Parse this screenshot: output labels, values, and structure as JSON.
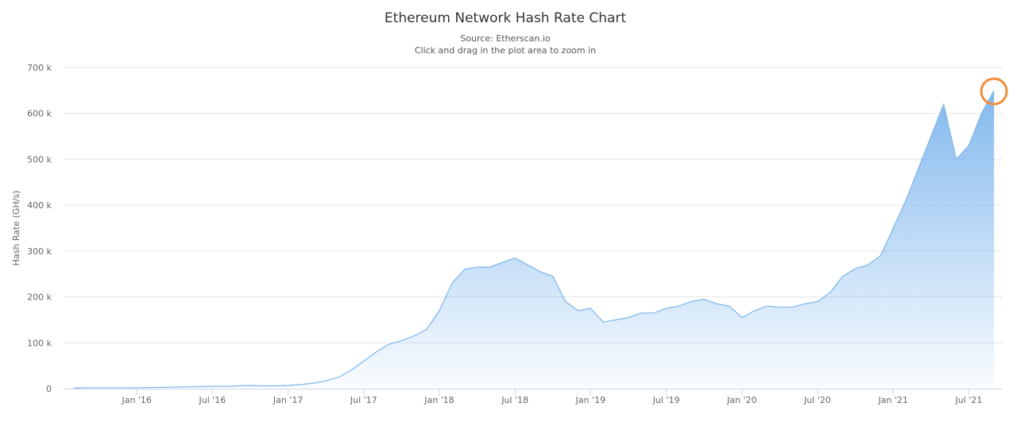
{
  "chart_data": {
    "type": "area",
    "title": "Ethereum Network Hash Rate Chart",
    "subtitle": "Source: Etherscan.io",
    "instruction": "Click and drag in the plot area to zoom in",
    "y_label": "Hash Rate (GH/s)",
    "color": "#7cb5ec",
    "grid": true,
    "x": [
      "2015-08",
      "2015-09",
      "2015-10",
      "2015-11",
      "2015-12",
      "2016-01",
      "2016-02",
      "2016-03",
      "2016-04",
      "2016-05",
      "2016-06",
      "2016-07",
      "2016-08",
      "2016-09",
      "2016-10",
      "2016-11",
      "2016-12",
      "2017-01",
      "2017-02",
      "2017-03",
      "2017-04",
      "2017-05",
      "2017-06",
      "2017-07",
      "2017-08",
      "2017-09",
      "2017-10",
      "2017-11",
      "2017-12",
      "2018-01",
      "2018-02",
      "2018-03",
      "2018-04",
      "2018-05",
      "2018-06",
      "2018-07",
      "2018-08",
      "2018-09",
      "2018-10",
      "2018-11",
      "2018-12",
      "2019-01",
      "2019-02",
      "2019-03",
      "2019-04",
      "2019-05",
      "2019-06",
      "2019-07",
      "2019-08",
      "2019-09",
      "2019-10",
      "2019-11",
      "2019-12",
      "2020-01",
      "2020-02",
      "2020-03",
      "2020-04",
      "2020-05",
      "2020-06",
      "2020-07",
      "2020-08",
      "2020-09",
      "2020-10",
      "2020-11",
      "2020-12",
      "2021-01",
      "2021-02",
      "2021-03",
      "2021-04",
      "2021-05",
      "2021-06",
      "2021-07",
      "2021-08",
      "2021-09"
    ],
    "values": [
      1000,
      2000,
      2000,
      2000,
      2000,
      2000,
      2500,
      3000,
      3500,
      4000,
      4500,
      5000,
      5000,
      6000,
      7000,
      6000,
      6000,
      7000,
      9000,
      12000,
      17000,
      25000,
      40000,
      60000,
      80000,
      97000,
      105000,
      115000,
      130000,
      170000,
      230000,
      260000,
      265000,
      265000,
      275000,
      285000,
      270000,
      255000,
      245000,
      190000,
      170000,
      175000,
      145000,
      150000,
      155000,
      165000,
      165000,
      175000,
      180000,
      190000,
      195000,
      185000,
      180000,
      155000,
      170000,
      180000,
      178000,
      178000,
      185000,
      190000,
      210000,
      245000,
      262000,
      270000,
      290000,
      350000,
      410000,
      480000,
      550000,
      620000,
      500000,
      530000,
      600000,
      650000
    ],
    "xlim": [
      "2015-07",
      "2021-10"
    ],
    "xticks": [
      {
        "value": "2016-01",
        "label": "Jan '16"
      },
      {
        "value": "2016-07",
        "label": "Jul '16"
      },
      {
        "value": "2017-01",
        "label": "Jan '17"
      },
      {
        "value": "2017-07",
        "label": "Jul '17"
      },
      {
        "value": "2018-01",
        "label": "Jan '18"
      },
      {
        "value": "2018-07",
        "label": "Jul '18"
      },
      {
        "value": "2019-01",
        "label": "Jan '19"
      },
      {
        "value": "2019-07",
        "label": "Jul '19"
      },
      {
        "value": "2020-01",
        "label": "Jan '20"
      },
      {
        "value": "2020-07",
        "label": "Jul '20"
      },
      {
        "value": "2021-01",
        "label": "Jan '21"
      },
      {
        "value": "2021-07",
        "label": "Jul '21"
      }
    ],
    "ylim": [
      0,
      700000
    ],
    "yticks": [
      0,
      {
        "value": 100000,
        "label": "100 k"
      },
      {
        "value": 200000,
        "label": "200 k"
      },
      {
        "value": 300000,
        "label": "300 k"
      },
      {
        "value": 400000,
        "label": "400 k"
      },
      {
        "value": 500000,
        "label": "500 k"
      },
      {
        "value": 600000,
        "label": "600 k"
      },
      {
        "value": 700000,
        "label": "700 k"
      }
    ]
  }
}
